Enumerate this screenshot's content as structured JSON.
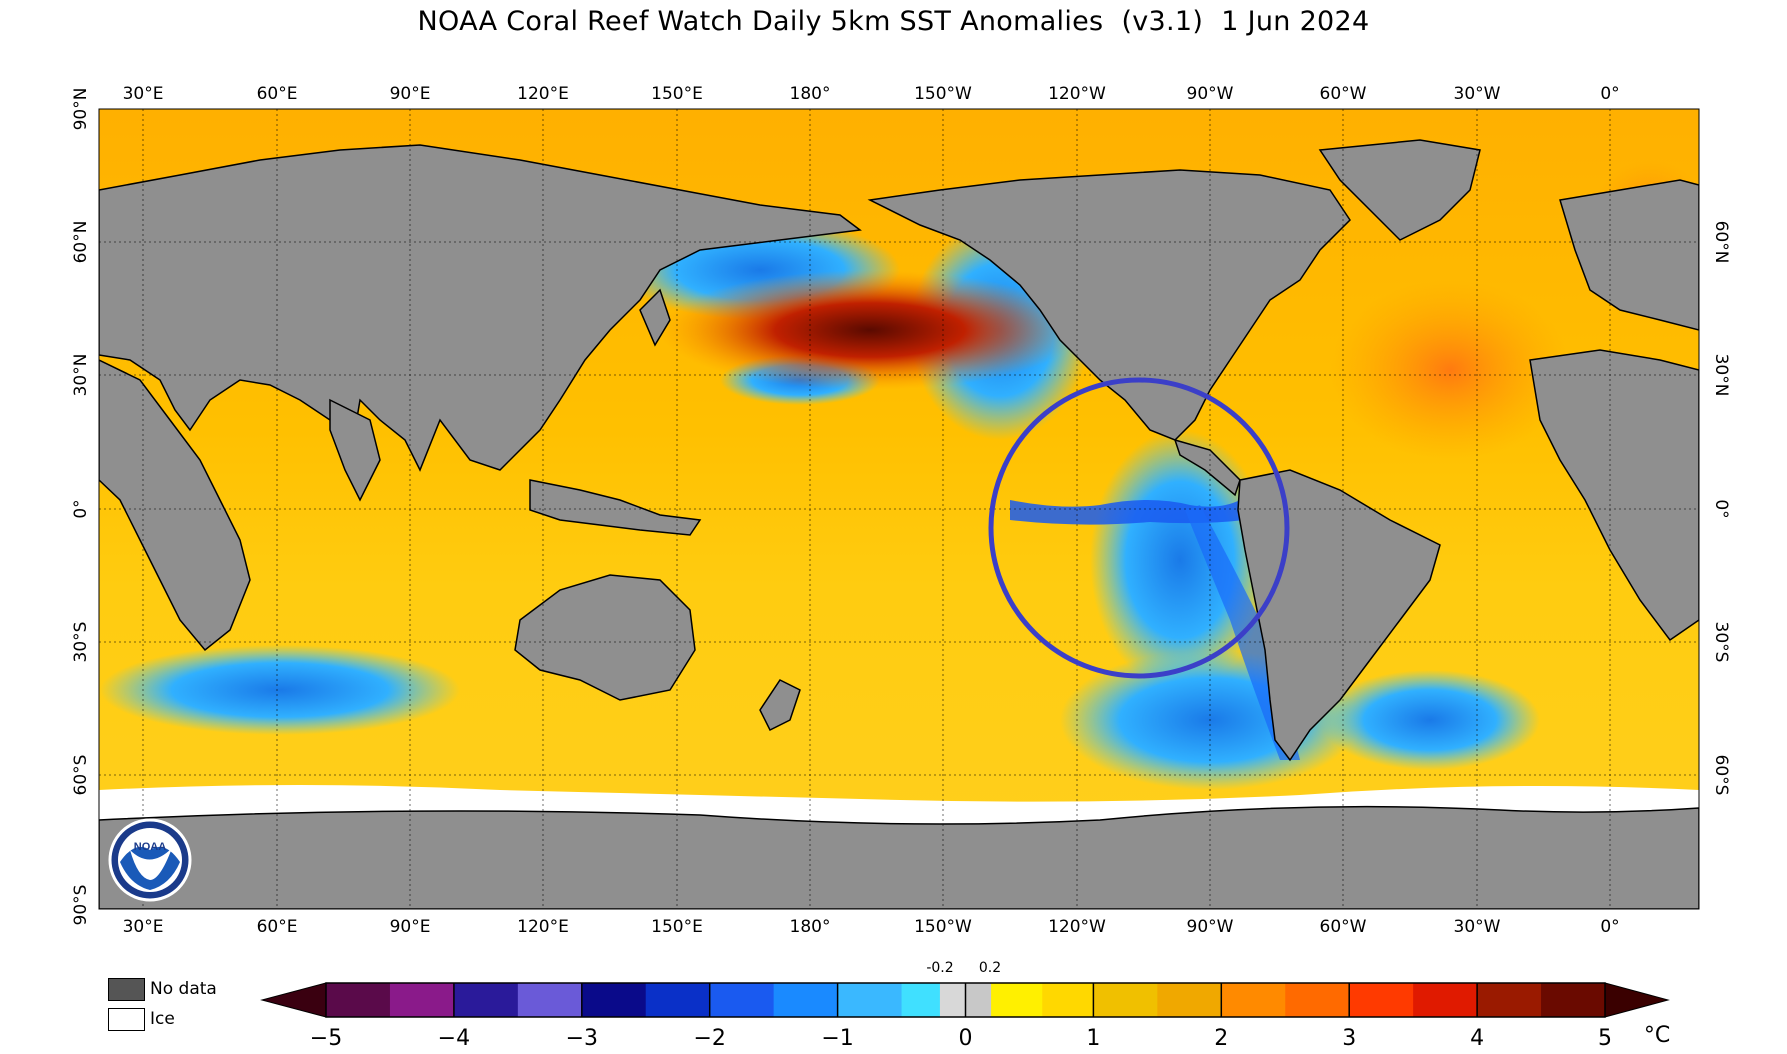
{
  "title": {
    "main": "NOAA Coral Reef Watch Daily 5km SST Anomalies",
    "version": "(v3.1)",
    "date": "1 Jun 2024"
  },
  "map": {
    "lon_labels": [
      "30°E",
      "60°E",
      "90°E",
      "120°E",
      "150°E",
      "180°",
      "150°W",
      "120°W",
      "90°W",
      "60°W",
      "30°W",
      "0°"
    ],
    "lat_labels_left": [
      "90°N",
      "60°N",
      "30°N",
      "0°",
      "30°S",
      "60°S",
      "90°S"
    ],
    "lat_labels_right": [
      "60°N",
      "30°N",
      "0°",
      "30°S",
      "60°S"
    ],
    "land_color": "#8f8f8f",
    "ice_color": "#ffffff",
    "highlight_circle_color": "#3b3fc8"
  },
  "legend": {
    "no_data_label": "No data",
    "no_data_color": "#555555",
    "ice_label": "Ice",
    "ice_color": "#ffffff"
  },
  "colorbar": {
    "ticks": [
      "−5",
      "−4",
      "−3",
      "−2",
      "−1",
      "0",
      "1",
      "2",
      "3",
      "4",
      "5"
    ],
    "small_ticks": [
      "-0.2",
      "0.2"
    ],
    "unit": "°C",
    "colors": [
      "#3a0010",
      "#5a0a4a",
      "#8a1a8a",
      "#2a1a9a",
      "#4a30c0",
      "#6a5ad8",
      "#0a0a8a",
      "#0a30c8",
      "#1a5af0",
      "#1a8aff",
      "#3ab8ff",
      "#40e0ff",
      "#d0d0d0",
      "#fff000",
      "#ffd000",
      "#f0b000",
      "#ff8a00",
      "#ff6a00",
      "#ff3a00",
      "#e01a00",
      "#9a1a00",
      "#6a0a00",
      "#3a0000"
    ]
  },
  "logo": {
    "text": "NOAA"
  }
}
